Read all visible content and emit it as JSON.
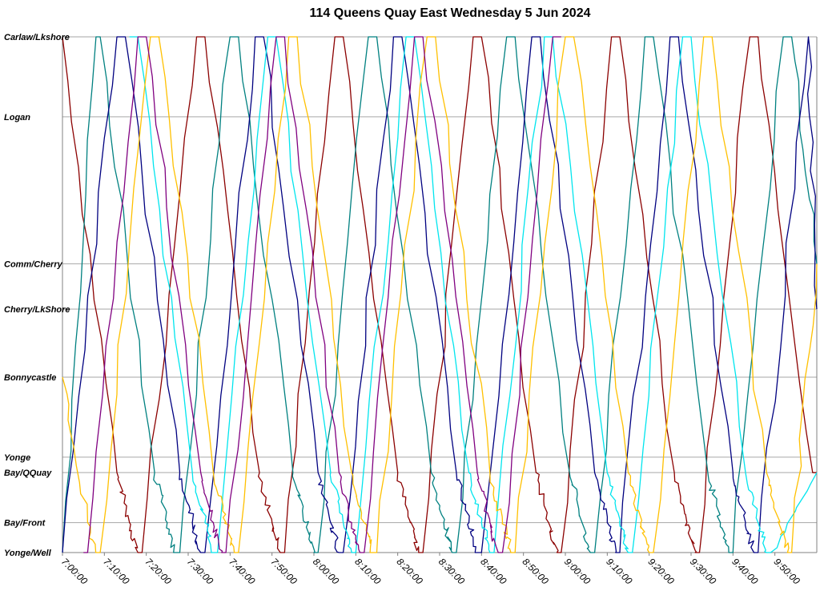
{
  "chart_data": {
    "type": "line",
    "title": "114 Queens Quay East Wednesday 5 Jun 2024",
    "xlabel": "",
    "ylabel": "",
    "x_ticks": [
      "7:00:00",
      "7:10:00",
      "7:20:00",
      "7:30:00",
      "7:40:00",
      "7:50:00",
      "8:00:00",
      "8:10:00",
      "8:20:00",
      "8:30:00",
      "8:40:00",
      "8:50:00",
      "9:00:00",
      "9:10:00",
      "9:20:00",
      "9:30:00",
      "9:40:00",
      "9:50:00"
    ],
    "xlim": [
      "7:00:00",
      "10:00:00"
    ],
    "stops": [
      {
        "name": "Carlaw/Lkshore",
        "pos": 0
      },
      {
        "name": "Logan",
        "pos": 0.155
      },
      {
        "name": "Comm/Cherry",
        "pos": 0.44
      },
      {
        "name": "Cherry/LkShore",
        "pos": 0.528
      },
      {
        "name": "Bonnycastle",
        "pos": 0.66
      },
      {
        "name": "Yonge",
        "pos": 0.815
      },
      {
        "name": "Bay/QQuay",
        "pos": 0.845
      },
      {
        "name": "Bay/Front",
        "pos": 0.942
      },
      {
        "name": "Yonge/Well",
        "pos": 1
      }
    ],
    "grid": true,
    "series": [
      {
        "color": "#8B0000",
        "points": [
          [
            "7:00",
            "Carlaw/Lkshore"
          ],
          [
            "7:13",
            "Bay/QQuay"
          ],
          [
            "7:16",
            "Bay/Front"
          ],
          [
            "7:18",
            "Yonge/Well"
          ],
          [
            "7:19",
            "Yonge/Well"
          ],
          [
            "7:32",
            "Carlaw/Lkshore"
          ],
          [
            "7:34",
            "Carlaw/Lkshore"
          ],
          [
            "7:47",
            "Bay/QQuay"
          ],
          [
            "7:50",
            "Bay/Front"
          ],
          [
            "7:52",
            "Yonge/Well"
          ],
          [
            "7:53",
            "Yonge/Well"
          ],
          [
            "8:05",
            "Carlaw/Lkshore"
          ],
          [
            "8:07",
            "Carlaw/Lkshore"
          ],
          [
            "8:20",
            "Bay/QQuay"
          ],
          [
            "8:23",
            "Bay/Front"
          ],
          [
            "8:25",
            "Yonge/Well"
          ],
          [
            "8:26",
            "Yonge/Well"
          ],
          [
            "8:38",
            "Carlaw/Lkshore"
          ],
          [
            "8:40",
            "Carlaw/Lkshore"
          ],
          [
            "8:53",
            "Bay/QQuay"
          ],
          [
            "8:56",
            "Bay/Front"
          ],
          [
            "8:58",
            "Yonge/Well"
          ],
          [
            "8:59",
            "Yonge/Well"
          ],
          [
            "9:11",
            "Carlaw/Lkshore"
          ],
          [
            "9:13",
            "Carlaw/Lkshore"
          ],
          [
            "9:26",
            "Bay/QQuay"
          ],
          [
            "9:29",
            "Bay/Front"
          ],
          [
            "9:31",
            "Yonge/Well"
          ],
          [
            "9:32",
            "Yonge/Well"
          ],
          [
            "9:44",
            "Carlaw/Lkshore"
          ],
          [
            "9:46",
            "Carlaw/Lkshore"
          ],
          [
            "9:59",
            "Bay/QQuay"
          ],
          [
            "10:00",
            "Bay/QQuay"
          ]
        ]
      },
      {
        "color": "#008080",
        "points": [
          [
            "7:00",
            "Yonge/Well"
          ],
          [
            "7:08",
            "Carlaw/Lkshore"
          ],
          [
            "7:09",
            "Carlaw/Lkshore"
          ],
          [
            "7:22",
            "Bay/QQuay"
          ],
          [
            "7:25",
            "Bay/Front"
          ],
          [
            "7:27",
            "Yonge/Well"
          ],
          [
            "7:28",
            "Yonge/Well"
          ],
          [
            "7:40",
            "Carlaw/Lkshore"
          ],
          [
            "7:42",
            "Carlaw/Lkshore"
          ],
          [
            "7:55",
            "Bay/QQuay"
          ],
          [
            "7:58",
            "Bay/Front"
          ],
          [
            "8:00",
            "Yonge/Well"
          ],
          [
            "8:01",
            "Yonge/Well"
          ],
          [
            "8:13",
            "Carlaw/Lkshore"
          ],
          [
            "8:15",
            "Carlaw/Lkshore"
          ],
          [
            "8:28",
            "Bay/QQuay"
          ],
          [
            "8:31",
            "Bay/Front"
          ],
          [
            "8:33",
            "Yonge/Well"
          ],
          [
            "8:34",
            "Yonge/Well"
          ],
          [
            "8:46",
            "Carlaw/Lkshore"
          ],
          [
            "8:48",
            "Carlaw/Lkshore"
          ],
          [
            "9:01",
            "Bay/QQuay"
          ],
          [
            "9:04",
            "Bay/Front"
          ],
          [
            "9:06",
            "Yonge/Well"
          ],
          [
            "9:07",
            "Yonge/Well"
          ],
          [
            "9:19",
            "Carlaw/Lkshore"
          ],
          [
            "9:21",
            "Carlaw/Lkshore"
          ],
          [
            "9:34",
            "Bay/QQuay"
          ],
          [
            "9:37",
            "Bay/Front"
          ],
          [
            "9:39",
            "Yonge/Well"
          ],
          [
            "9:40",
            "Yonge/Well"
          ],
          [
            "9:52",
            "Carlaw/Lkshore"
          ],
          [
            "9:54",
            "Carlaw/Lkshore"
          ],
          [
            "10:00",
            "Comm/Cherry"
          ]
        ]
      },
      {
        "color": "#000080",
        "points": [
          [
            "7:00",
            "Yonge/Well"
          ],
          [
            "7:13",
            "Carlaw/Lkshore"
          ],
          [
            "7:15",
            "Carlaw/Lkshore"
          ],
          [
            "7:28",
            "Bay/QQuay"
          ],
          [
            "7:31",
            "Bay/Front"
          ],
          [
            "7:33",
            "Yonge/Well"
          ],
          [
            "7:34",
            "Yonge/Well"
          ],
          [
            "7:46",
            "Carlaw/Lkshore"
          ],
          [
            "7:48",
            "Carlaw/Lkshore"
          ],
          [
            "8:01",
            "Bay/QQuay"
          ],
          [
            "8:04",
            "Bay/Front"
          ],
          [
            "8:06",
            "Yonge/Well"
          ],
          [
            "8:07",
            "Yonge/Well"
          ],
          [
            "8:19",
            "Carlaw/Lkshore"
          ],
          [
            "8:21",
            "Carlaw/Lkshore"
          ],
          [
            "8:34",
            "Bay/QQuay"
          ],
          [
            "8:37",
            "Bay/Front"
          ],
          [
            "8:39",
            "Yonge/Well"
          ],
          [
            "8:40",
            "Yonge/Well"
          ],
          [
            "8:52",
            "Carlaw/Lkshore"
          ],
          [
            "8:54",
            "Carlaw/Lkshore"
          ],
          [
            "9:07",
            "Bay/QQuay"
          ],
          [
            "9:10",
            "Bay/Front"
          ],
          [
            "9:12",
            "Yonge/Well"
          ],
          [
            "9:13",
            "Yonge/Well"
          ],
          [
            "9:25",
            "Carlaw/Lkshore"
          ],
          [
            "9:27",
            "Carlaw/Lkshore"
          ],
          [
            "9:40",
            "Bay/QQuay"
          ],
          [
            "9:43",
            "Bay/Front"
          ],
          [
            "9:45",
            "Yonge/Well"
          ],
          [
            "9:46",
            "Yonge/Well"
          ],
          [
            "9:58",
            "Carlaw/Lkshore"
          ],
          [
            "10:00",
            "Cherry/LkShore"
          ]
        ]
      },
      {
        "color": "#00E5EE",
        "points": [
          [
            "7:16",
            "Carlaw/Lkshore"
          ],
          [
            "7:18",
            "Carlaw/Lkshore"
          ],
          [
            "7:31",
            "Bay/QQuay"
          ],
          [
            "7:34",
            "Bay/Front"
          ],
          [
            "7:36",
            "Yonge/Well"
          ],
          [
            "7:37",
            "Yonge/Well"
          ],
          [
            "7:49",
            "Carlaw/Lkshore"
          ],
          [
            "7:51",
            "Carlaw/Lkshore"
          ],
          [
            "8:04",
            "Bay/QQuay"
          ],
          [
            "8:07",
            "Bay/Front"
          ],
          [
            "8:09",
            "Yonge/Well"
          ],
          [
            "8:10",
            "Yonge/Well"
          ],
          [
            "8:22",
            "Carlaw/Lkshore"
          ],
          [
            "8:24",
            "Carlaw/Lkshore"
          ],
          [
            "8:37",
            "Bay/QQuay"
          ],
          [
            "8:40",
            "Bay/Front"
          ],
          [
            "8:42",
            "Yonge/Well"
          ],
          [
            "8:43",
            "Yonge/Well"
          ],
          [
            "8:55",
            "Carlaw/Lkshore"
          ],
          [
            "8:57",
            "Carlaw/Lkshore"
          ],
          [
            "9:10",
            "Bay/QQuay"
          ],
          [
            "9:13",
            "Bay/Front"
          ],
          [
            "9:15",
            "Yonge/Well"
          ],
          [
            "9:16",
            "Yonge/Well"
          ],
          [
            "9:28",
            "Carlaw/Lkshore"
          ],
          [
            "9:30",
            "Carlaw/Lkshore"
          ],
          [
            "9:43",
            "Bay/QQuay"
          ],
          [
            "9:46",
            "Bay/Front"
          ],
          [
            "9:48",
            "Yonge/Well"
          ],
          [
            "9:49",
            "Yonge/Well"
          ],
          [
            "10:00",
            "Bay/QQuay"
          ]
        ]
      },
      {
        "color": "#FFC000",
        "points": [
          [
            "7:00",
            "Bonnycastle"
          ],
          [
            "7:06",
            "Bay/Front"
          ],
          [
            "7:08",
            "Yonge/Well"
          ],
          [
            "7:09",
            "Yonge/Well"
          ],
          [
            "7:21",
            "Carlaw/Lkshore"
          ],
          [
            "7:23",
            "Carlaw/Lkshore"
          ],
          [
            "7:36",
            "Bay/QQuay"
          ],
          [
            "7:39",
            "Bay/Front"
          ],
          [
            "7:41",
            "Yonge/Well"
          ],
          [
            "7:42",
            "Yonge/Well"
          ],
          [
            "7:54",
            "Carlaw/Lkshore"
          ],
          [
            "7:56",
            "Carlaw/Lkshore"
          ],
          [
            "8:09",
            "Bay/QQuay"
          ],
          [
            "8:12",
            "Bay/Front"
          ],
          [
            "8:14",
            "Yonge/Well"
          ],
          [
            "8:15",
            "Yonge/Well"
          ],
          [
            "8:27",
            "Carlaw/Lkshore"
          ],
          [
            "8:29",
            "Carlaw/Lkshore"
          ],
          [
            "8:42",
            "Bay/QQuay"
          ],
          [
            "8:45",
            "Bay/Front"
          ],
          [
            "8:47",
            "Yonge/Well"
          ],
          [
            "8:48",
            "Yonge/Well"
          ],
          [
            "9:00",
            "Carlaw/Lkshore"
          ],
          [
            "9:02",
            "Carlaw/Lkshore"
          ],
          [
            "9:15",
            "Bay/QQuay"
          ],
          [
            "9:18",
            "Bay/Front"
          ],
          [
            "9:20",
            "Yonge/Well"
          ],
          [
            "9:21",
            "Yonge/Well"
          ],
          [
            "9:33",
            "Carlaw/Lkshore"
          ],
          [
            "9:35",
            "Carlaw/Lkshore"
          ],
          [
            "9:48",
            "Bay/QQuay"
          ],
          [
            "9:51",
            "Bay/Front"
          ],
          [
            "9:53",
            "Yonge/Well"
          ],
          [
            "9:54",
            "Yonge/Well"
          ],
          [
            "10:00",
            "Comm/Cherry"
          ]
        ]
      },
      {
        "color": "#800080",
        "points": [
          [
            "7:05",
            "Yonge/Well"
          ],
          [
            "7:06",
            "Yonge/Well"
          ],
          [
            "7:18",
            "Carlaw/Lkshore"
          ],
          [
            "7:20",
            "Carlaw/Lkshore"
          ],
          [
            "7:33",
            "Bay/QQuay"
          ],
          [
            "7:36",
            "Bay/Front"
          ],
          [
            "7:38",
            "Yonge/Well"
          ],
          [
            "7:39",
            "Yonge/Well"
          ],
          [
            "7:51",
            "Carlaw/Lkshore"
          ],
          [
            "7:53",
            "Carlaw/Lkshore"
          ],
          [
            "8:06",
            "Bay/QQuay"
          ],
          [
            "8:09",
            "Bay/Front"
          ],
          [
            "8:11",
            "Yonge/Well"
          ],
          [
            "8:12",
            "Yonge/Well"
          ],
          [
            "8:24",
            "Carlaw/Lkshore"
          ],
          [
            "8:26",
            "Carlaw/Lkshore"
          ],
          [
            "8:39",
            "Bay/QQuay"
          ],
          [
            "8:42",
            "Bay/Front"
          ],
          [
            "8:44",
            "Yonge/Well"
          ],
          [
            "8:45",
            "Yonge/Well"
          ],
          [
            "8:57",
            "Carlaw/Lkshore"
          ],
          [
            "8:59",
            "Carlaw/Lkshore"
          ]
        ]
      }
    ]
  }
}
